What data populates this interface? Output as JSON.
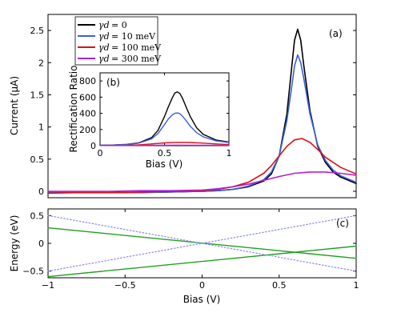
{
  "chart_data": [
    {
      "panel_label": "(a)",
      "type": "line",
      "ylabel": "Current (μA)",
      "xlim": [
        -1,
        1
      ],
      "ylim": [
        -0.1,
        2.75
      ],
      "xticks": [],
      "yticks": [
        0,
        0.5,
        1,
        1.5,
        2,
        2.5
      ],
      "ytick_labels": [
        "0",
        "0.5",
        "1",
        "1.5",
        "2",
        "2.5"
      ],
      "legend_position": "top-left",
      "series": [
        {
          "name": "γd = 0",
          "legend_symbol": "γd",
          "legend_value": "= 0",
          "color": "#000000",
          "x": [
            -1,
            -0.8,
            -0.6,
            -0.4,
            -0.2,
            0,
            0.1,
            0.2,
            0.3,
            0.4,
            0.45,
            0.5,
            0.55,
            0.58,
            0.6,
            0.62,
            0.64,
            0.66,
            0.7,
            0.75,
            0.8,
            0.85,
            0.9,
            1.0
          ],
          "y": [
            -0.02,
            -0.02,
            -0.02,
            -0.02,
            -0.01,
            0.0,
            0.01,
            0.03,
            0.07,
            0.16,
            0.27,
            0.55,
            1.2,
            1.9,
            2.35,
            2.52,
            2.35,
            1.95,
            1.25,
            0.7,
            0.45,
            0.3,
            0.22,
            0.12
          ]
        },
        {
          "name": "γd = 10 meV",
          "legend_symbol": "γd",
          "legend_value": "= 10 meV",
          "color": "#3a5fd9",
          "x": [
            -1,
            -0.8,
            -0.6,
            -0.4,
            -0.2,
            0,
            0.1,
            0.2,
            0.3,
            0.4,
            0.45,
            0.5,
            0.55,
            0.58,
            0.6,
            0.62,
            0.64,
            0.66,
            0.7,
            0.75,
            0.8,
            0.85,
            0.9,
            1.0
          ],
          "y": [
            -0.02,
            -0.02,
            -0.02,
            -0.02,
            -0.01,
            0.0,
            0.01,
            0.03,
            0.08,
            0.18,
            0.3,
            0.55,
            1.1,
            1.6,
            1.95,
            2.12,
            2.0,
            1.75,
            1.2,
            0.72,
            0.48,
            0.33,
            0.24,
            0.14
          ]
        },
        {
          "name": "γd = 100 meV",
          "legend_symbol": "γd",
          "legend_value": "= 100 meV",
          "color": "#e01010",
          "x": [
            -1,
            -0.8,
            -0.6,
            -0.4,
            -0.2,
            0,
            0.1,
            0.2,
            0.3,
            0.4,
            0.45,
            0.5,
            0.55,
            0.6,
            0.65,
            0.7,
            0.75,
            0.8,
            0.9,
            1.0
          ],
          "y": [
            -0.03,
            -0.02,
            -0.02,
            -0.01,
            0.0,
            0.01,
            0.03,
            0.07,
            0.14,
            0.28,
            0.4,
            0.55,
            0.7,
            0.8,
            0.82,
            0.76,
            0.65,
            0.53,
            0.37,
            0.27
          ]
        },
        {
          "name": "γd = 300 meV",
          "legend_symbol": "γd",
          "legend_value": "= 300 meV",
          "color": "#b020d8",
          "x": [
            -1,
            -0.8,
            -0.6,
            -0.4,
            -0.2,
            0,
            0.1,
            0.2,
            0.3,
            0.4,
            0.5,
            0.6,
            0.7,
            0.8,
            0.9,
            1.0
          ],
          "y": [
            0.0,
            0.0,
            0.0,
            0.01,
            0.01,
            0.02,
            0.04,
            0.07,
            0.11,
            0.17,
            0.23,
            0.28,
            0.3,
            0.3,
            0.28,
            0.25
          ]
        }
      ]
    },
    {
      "panel_label": "(b)",
      "type": "line",
      "ylabel": "Rectification Ratio",
      "xlabel": "Bias (V)",
      "xlim": [
        0,
        1
      ],
      "ylim": [
        0,
        900
      ],
      "xticks": [
        0,
        0.5,
        1
      ],
      "xtick_labels": [
        "0",
        "0.5",
        "1"
      ],
      "yticks": [
        0,
        200,
        400,
        600,
        800
      ],
      "ytick_labels": [
        "0",
        "200",
        "400",
        "600",
        "800"
      ],
      "series": [
        {
          "color": "#000000",
          "x": [
            0,
            0.1,
            0.2,
            0.3,
            0.4,
            0.45,
            0.5,
            0.53,
            0.56,
            0.58,
            0.6,
            0.62,
            0.64,
            0.67,
            0.7,
            0.75,
            0.8,
            0.9,
            1.0
          ],
          "y": [
            5,
            8,
            15,
            35,
            100,
            190,
            360,
            480,
            590,
            650,
            665,
            645,
            585,
            470,
            360,
            220,
            140,
            70,
            45
          ]
        },
        {
          "color": "#3a5fd9",
          "x": [
            0,
            0.1,
            0.2,
            0.3,
            0.4,
            0.45,
            0.5,
            0.53,
            0.56,
            0.58,
            0.6,
            0.62,
            0.64,
            0.67,
            0.7,
            0.75,
            0.8,
            0.9,
            1.0
          ],
          "y": [
            5,
            8,
            15,
            32,
            85,
            150,
            260,
            330,
            380,
            400,
            405,
            395,
            365,
            305,
            240,
            160,
            110,
            60,
            40
          ]
        },
        {
          "color": "#e01010",
          "x": [
            0,
            0.2,
            0.3,
            0.4,
            0.5,
            0.6,
            0.7,
            0.8,
            0.9,
            1.0
          ],
          "y": [
            3,
            5,
            10,
            22,
            35,
            42,
            40,
            32,
            22,
            14
          ]
        },
        {
          "color": "#b020d8",
          "x": [
            0,
            0.2,
            0.4,
            0.6,
            0.8,
            1.0
          ],
          "y": [
            2,
            3,
            5,
            7,
            6,
            5
          ]
        }
      ]
    },
    {
      "panel_label": "(c)",
      "type": "line",
      "ylabel": "Energy (eV)",
      "xlabel": "Bias (V)",
      "xlim": [
        -1,
        1
      ],
      "ylim": [
        -0.62,
        0.62
      ],
      "xticks": [
        -1,
        -0.5,
        0,
        0.5,
        1
      ],
      "xtick_labels": [
        "−1",
        "−0.5",
        "0",
        "0.5",
        "1"
      ],
      "yticks": [
        -0.5,
        0,
        0.5
      ],
      "ytick_labels": [
        "−0.5",
        "0",
        "0.5"
      ],
      "series": [
        {
          "color": "#20a020",
          "style": "solid",
          "x": [
            -1,
            1
          ],
          "y": [
            0.28,
            -0.27
          ]
        },
        {
          "color": "#20a020",
          "style": "solid",
          "x": [
            -1,
            1
          ],
          "y": [
            -0.6,
            -0.05
          ]
        },
        {
          "color": "#8888ee",
          "style": "dotted",
          "x": [
            -1,
            1
          ],
          "y": [
            -0.5,
            0.5
          ]
        },
        {
          "color": "#8888ee",
          "style": "dotted",
          "x": [
            -1,
            1
          ],
          "y": [
            0.5,
            -0.5
          ]
        }
      ]
    }
  ]
}
